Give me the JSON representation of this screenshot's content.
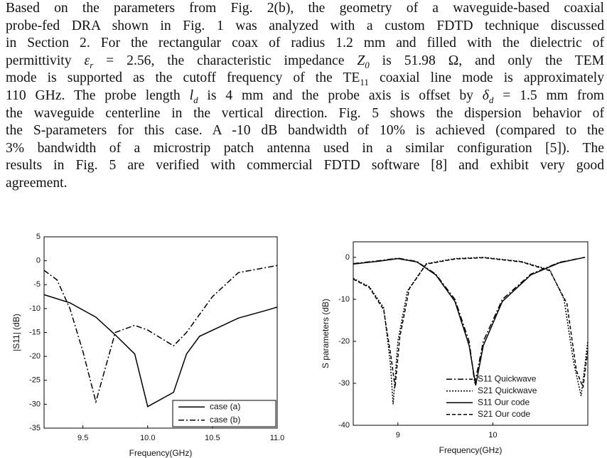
{
  "paragraph": [
    [
      "Based on the parameters from Fig. 2(b), the geometry of a waveguide-based coaxial"
    ],
    [
      "probe-fed DRA shown in Fig. 1 was analyzed with a custom FDTD technique discussed"
    ],
    [
      "in Section 2. For the rectangular coax of radius 1.2 mm and filled with the dielectric of"
    ],
    [
      "permittivity ",
      {
        "main": "ε",
        "sub": "r"
      },
      " = 2.56, the characteristic impedance ",
      {
        "main": "Z",
        "sub": "0"
      },
      " is 51.98 Ω, and only the TEM"
    ],
    [
      "mode is supported as the cutoff frequency of the TE",
      {
        "main": "",
        "sub": "11"
      },
      " coaxial line mode is approximately"
    ],
    [
      "110 GHz. The probe length ",
      {
        "main": "l",
        "sub": "d"
      },
      " is 4 mm and the probe axis is offset by ",
      {
        "main": "δ",
        "sub": "d"
      },
      " = 1.5 mm from"
    ],
    [
      "the waveguide centerline in the vertical direction. Fig. 5 shows the dispersion behavior of"
    ],
    [
      "the S-parameters for this case. A -10 dB bandwidth of 10% is achieved (compared to the"
    ],
    [
      "3% bandwidth of a microstrip patch antenna used in a similar configuration [5]). The"
    ],
    [
      "results in Fig. 5 are verified with commercial FDTD software [8] and exhibit very good"
    ],
    [
      "agreement."
    ]
  ],
  "chart_data": [
    {
      "type": "line",
      "x_label": "Frequency(GHz)",
      "y_label": "|S11| (dB)",
      "xlim": [
        9.2,
        11.0
      ],
      "xticks": [
        9.5,
        {
          "value": 10,
          "label": "10.0"
        },
        10.5,
        {
          "value": 11,
          "label": "11.0"
        }
      ],
      "ylim": [
        -35,
        5
      ],
      "yticks": [
        -35,
        -30,
        -25,
        -20,
        -15,
        -10,
        -5,
        0,
        5
      ],
      "legend": "lower right",
      "legend_box": true,
      "series": [
        {
          "name": "case (a)",
          "color": "#000000",
          "dash": "solid",
          "x": [
            9.2,
            9.4,
            9.6,
            9.75,
            9.9,
            10.0,
            10.2,
            10.3,
            10.4,
            10.7,
            10.9,
            11.0
          ],
          "values": [
            -7.1,
            -8.8,
            -11.8,
            -15.5,
            -19.5,
            -30.5,
            -27.5,
            -19.5,
            -15.8,
            -12,
            -10.5,
            -9.7
          ]
        },
        {
          "name": "case (b)",
          "color": "#000000",
          "dash": "dashdot",
          "x": [
            9.2,
            9.3,
            9.4,
            9.5,
            9.6,
            9.75,
            9.9,
            10.0,
            10.2,
            10.3,
            10.5,
            10.7,
            11.0
          ],
          "values": [
            -2,
            -4,
            -10,
            -19,
            -29.5,
            -15,
            -13.5,
            -14.5,
            -17.8,
            -15,
            -7.5,
            -2.5,
            -1
          ]
        }
      ]
    },
    {
      "type": "line",
      "x_label": "Frequency(GHz)",
      "y_label": "S parameters (dB)",
      "xlim": [
        8.53,
        11.0
      ],
      "xticks": [
        9,
        10
      ],
      "ylim": [
        -40,
        3.7
      ],
      "yticks": [
        -40,
        -30,
        -20,
        -10,
        0
      ],
      "legend": "lower right",
      "legend_box": false,
      "series": [
        {
          "name": "S11 Quickwave",
          "color": "#000000",
          "dash": "dashdot",
          "x": [
            8.53,
            8.8,
            9.0,
            9.2,
            9.4,
            9.6,
            9.75,
            9.81,
            9.9,
            10.1,
            10.4,
            10.7,
            10.97
          ],
          "values": [
            -1.5,
            -0.8,
            -0.2,
            -1,
            -4,
            -10,
            -20,
            -30,
            -20,
            -10,
            -4,
            -1.2,
            0
          ]
        },
        {
          "name": "S21 Quickwave",
          "color": "#000000",
          "dash": "dotted",
          "x": [
            8.53,
            8.7,
            8.85,
            8.92,
            8.95,
            9.0,
            9.1,
            9.3,
            9.6,
            9.9,
            10.3,
            10.6,
            10.75,
            10.85,
            10.93,
            11.0
          ],
          "values": [
            -5,
            -7,
            -12,
            -25,
            -35,
            -20,
            -8,
            -1.5,
            -0.3,
            0,
            -1,
            -3,
            -10,
            -25,
            -33,
            -20
          ]
        },
        {
          "name": "S11 Our code",
          "color": "#000000",
          "dash": "solid",
          "x": [
            8.53,
            8.8,
            9.0,
            9.2,
            9.4,
            9.6,
            9.75,
            9.82,
            9.9,
            10.1,
            10.4,
            10.7,
            10.97
          ],
          "values": [
            -1.6,
            -0.9,
            -0.3,
            -1.1,
            -4.2,
            -10.5,
            -21,
            -30.5,
            -21,
            -10.5,
            -4.2,
            -1.3,
            0
          ]
        },
        {
          "name": "S21 Our code",
          "color": "#000000",
          "dash": "dashed",
          "x": [
            8.53,
            8.7,
            8.85,
            8.93,
            8.97,
            9.02,
            9.12,
            9.3,
            9.6,
            9.9,
            10.3,
            10.6,
            10.78,
            10.88,
            10.95,
            11.0
          ],
          "values": [
            -5.2,
            -7.2,
            -12.5,
            -24,
            -31,
            -19,
            -7.5,
            -1.6,
            -0.4,
            -0.1,
            -1.1,
            -3.2,
            -11,
            -27,
            -31,
            -22
          ]
        }
      ]
    }
  ]
}
